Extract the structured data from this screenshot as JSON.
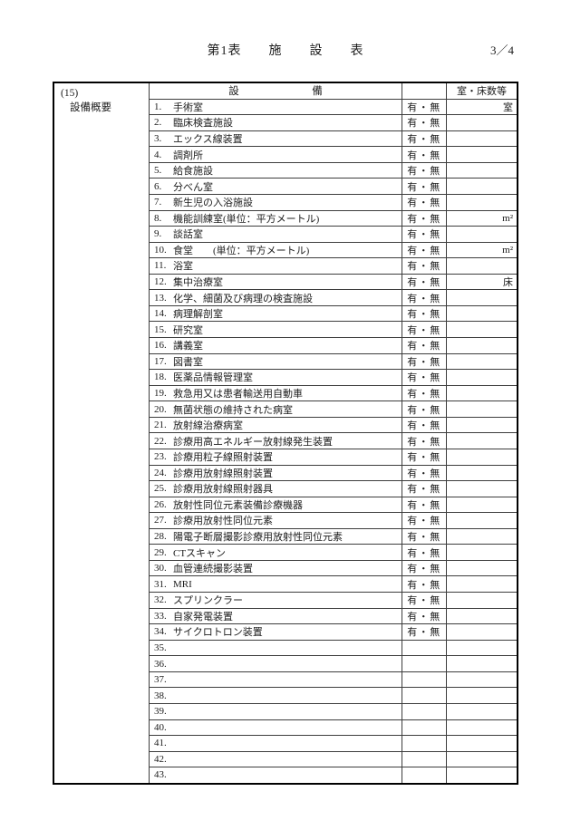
{
  "page": {
    "title": "第1表　　施　　設　　表",
    "page_number": "3／4"
  },
  "section": {
    "code": "(15)",
    "label": "設備概要"
  },
  "table": {
    "header": {
      "equipment": "設　　　　　　　備",
      "availability": "",
      "rooms": "室・床数等"
    },
    "rows": [
      {
        "num": "1.",
        "text": "手術室",
        "avail": "有・無",
        "unit": "室"
      },
      {
        "num": "2.",
        "text": "臨床検査施設",
        "avail": "有・無",
        "unit": ""
      },
      {
        "num": "3.",
        "text": "エックス線装置",
        "avail": "有・無",
        "unit": ""
      },
      {
        "num": "4.",
        "text": "調剤所",
        "avail": "有・無",
        "unit": ""
      },
      {
        "num": "5.",
        "text": "給食施設",
        "avail": "有・無",
        "unit": ""
      },
      {
        "num": "6.",
        "text": "分べん室",
        "avail": "有・無",
        "unit": ""
      },
      {
        "num": "7.",
        "text": "新生児の入浴施設",
        "avail": "有・無",
        "unit": ""
      },
      {
        "num": "8.",
        "text": "機能訓練室(単位：平方メートル)",
        "avail": "有・無",
        "unit": "m²"
      },
      {
        "num": "9.",
        "text": "談話室",
        "avail": "有・無",
        "unit": ""
      },
      {
        "num": "10.",
        "text": "食堂　　(単位：平方メートル)",
        "avail": "有・無",
        "unit": "m²"
      },
      {
        "num": "11.",
        "text": "浴室",
        "avail": "有・無",
        "unit": ""
      },
      {
        "num": "12.",
        "text": "集中治療室",
        "avail": "有・無",
        "unit": "床"
      },
      {
        "num": "13.",
        "text": "化学、細菌及び病理の検査施設",
        "avail": "有・無",
        "unit": ""
      },
      {
        "num": "14.",
        "text": "病理解剖室",
        "avail": "有・無",
        "unit": ""
      },
      {
        "num": "15.",
        "text": "研究室",
        "avail": "有・無",
        "unit": ""
      },
      {
        "num": "16.",
        "text": "講義室",
        "avail": "有・無",
        "unit": ""
      },
      {
        "num": "17.",
        "text": "図書室",
        "avail": "有・無",
        "unit": ""
      },
      {
        "num": "18.",
        "text": "医薬品情報管理室",
        "avail": "有・無",
        "unit": ""
      },
      {
        "num": "19.",
        "text": "救急用又は患者輸送用自動車",
        "avail": "有・無",
        "unit": ""
      },
      {
        "num": "20.",
        "text": "無菌状態の維持された病室",
        "avail": "有・無",
        "unit": ""
      },
      {
        "num": "21.",
        "text": "放射線治療病室",
        "avail": "有・無",
        "unit": ""
      },
      {
        "num": "22.",
        "text": "診療用高エネルギー放射線発生装置",
        "avail": "有・無",
        "unit": ""
      },
      {
        "num": "23.",
        "text": "診療用粒子線照射装置",
        "avail": "有・無",
        "unit": ""
      },
      {
        "num": "24.",
        "text": "診療用放射線照射装置",
        "avail": "有・無",
        "unit": ""
      },
      {
        "num": "25.",
        "text": "診療用放射線照射器具",
        "avail": "有・無",
        "unit": ""
      },
      {
        "num": "26.",
        "text": "放射性同位元素装備診療機器",
        "avail": "有・無",
        "unit": ""
      },
      {
        "num": "27.",
        "text": "診療用放射性同位元素",
        "avail": "有・無",
        "unit": ""
      },
      {
        "num": "28.",
        "text": "陽電子断層撮影診療用放射性同位元素",
        "avail": "有・無",
        "unit": ""
      },
      {
        "num": "29.",
        "text": "CTスキャン",
        "avail": "有・無",
        "unit": ""
      },
      {
        "num": "30.",
        "text": "血管連続撮影装置",
        "avail": "有・無",
        "unit": ""
      },
      {
        "num": "31.",
        "text": "MRI",
        "avail": "有・無",
        "unit": ""
      },
      {
        "num": "32.",
        "text": "スプリンクラー",
        "avail": "有・無",
        "unit": ""
      },
      {
        "num": "33.",
        "text": "自家発電装置",
        "avail": "有・無",
        "unit": ""
      },
      {
        "num": "34.",
        "text": "サイクロトロン装置",
        "avail": "有・無",
        "unit": ""
      },
      {
        "num": "35.",
        "text": "",
        "avail": "",
        "unit": ""
      },
      {
        "num": "36.",
        "text": "",
        "avail": "",
        "unit": ""
      },
      {
        "num": "37.",
        "text": "",
        "avail": "",
        "unit": ""
      },
      {
        "num": "38.",
        "text": "",
        "avail": "",
        "unit": ""
      },
      {
        "num": "39.",
        "text": "",
        "avail": "",
        "unit": ""
      },
      {
        "num": "40.",
        "text": "",
        "avail": "",
        "unit": ""
      },
      {
        "num": "41.",
        "text": "",
        "avail": "",
        "unit": ""
      },
      {
        "num": "42.",
        "text": "",
        "avail": "",
        "unit": ""
      },
      {
        "num": "43.",
        "text": "",
        "avail": "",
        "unit": ""
      }
    ]
  },
  "colors": {
    "paper": "#ffffff",
    "ink": "#1c1c1c",
    "grid_line": "#3d3d3d",
    "outer_border": "#000000"
  }
}
